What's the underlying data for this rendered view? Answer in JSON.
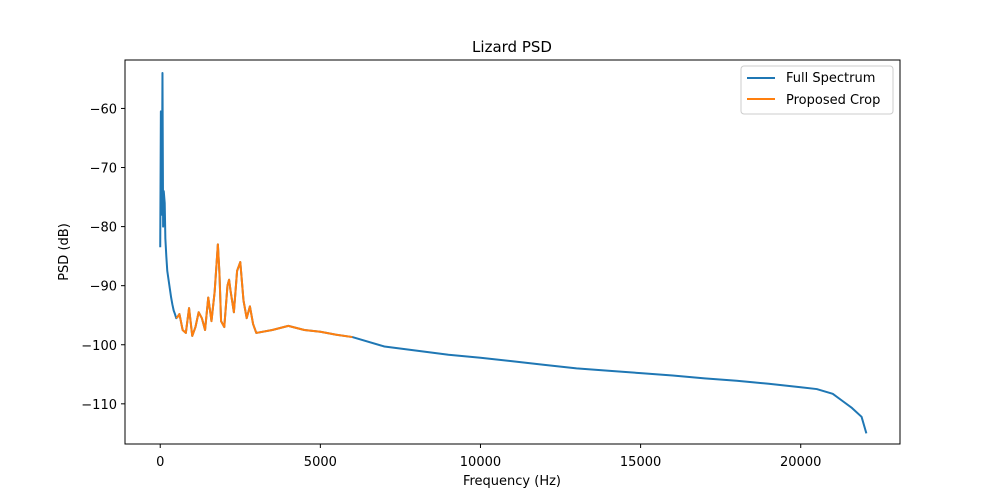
{
  "chart_data": {
    "type": "line",
    "title": "Lizard PSD",
    "xlabel": "Frequency (Hz)",
    "ylabel": "PSD (dB)",
    "xlim": [
      -1100,
      23100
    ],
    "ylim": [
      -116.8,
      -51.8
    ],
    "xticks": [
      0,
      5000,
      10000,
      15000,
      20000
    ],
    "xtick_labels": [
      "0",
      "5000",
      "10000",
      "15000",
      "20000"
    ],
    "yticks": [
      -60,
      -70,
      -80,
      -90,
      -100,
      -110
    ],
    "ytick_labels": [
      "−60",
      "−70",
      "−80",
      "−90",
      "−100",
      "−110"
    ],
    "legend_position": "top-right",
    "grid": false,
    "series": [
      {
        "name": "Full Spectrum",
        "color": "#1f77b4",
        "x": [
          0,
          20,
          30,
          50,
          70,
          90,
          110,
          140,
          160,
          190,
          220,
          260,
          300,
          340,
          380,
          420,
          460,
          500,
          540,
          600,
          700,
          800,
          900,
          1000,
          1100,
          1200,
          1300,
          1400,
          1500,
          1600,
          1700,
          1800,
          1850,
          1900,
          2000,
          2100,
          2150,
          2200,
          2300,
          2400,
          2500,
          2600,
          2700,
          2800,
          2900,
          3000,
          3500,
          4000,
          4500,
          5000,
          5500,
          6000,
          7000,
          8000,
          9000,
          10000,
          11000,
          12000,
          13000,
          14000,
          15000,
          16000,
          17000,
          18000,
          19000,
          20000,
          20500,
          21000,
          21300,
          21600,
          21900,
          22050
        ],
        "y": [
          -83.5,
          -60.5,
          -62,
          -78,
          -54,
          -80,
          -74,
          -76,
          -82,
          -85,
          -87.5,
          -89,
          -90.5,
          -92,
          -93.2,
          -94.2,
          -94.8,
          -95.5,
          -95.3,
          -94.8,
          -97.5,
          -98,
          -93.8,
          -98.5,
          -97,
          -94.5,
          -95.5,
          -97.5,
          -92,
          -96,
          -91,
          -83,
          -88,
          -96,
          -97,
          -90,
          -89,
          -91,
          -94.5,
          -87.5,
          -86,
          -92.5,
          -95.5,
          -93.5,
          -96.5,
          -98,
          -97.5,
          -96.8,
          -97.5,
          -97.8,
          -98.3,
          -98.7,
          -100.3,
          -101,
          -101.7,
          -102.2,
          -102.8,
          -103.4,
          -104,
          -104.4,
          -104.8,
          -105.2,
          -105.7,
          -106.1,
          -106.6,
          -107.2,
          -107.5,
          -108.3,
          -109.5,
          -110.7,
          -112.2,
          -115
        ]
      },
      {
        "name": "Proposed Crop",
        "color": "#ff7f0e",
        "x": [
          500,
          540,
          600,
          700,
          800,
          900,
          1000,
          1100,
          1200,
          1300,
          1400,
          1500,
          1600,
          1700,
          1800,
          1850,
          1900,
          2000,
          2100,
          2150,
          2200,
          2300,
          2400,
          2500,
          2600,
          2700,
          2800,
          2900,
          3000,
          3500,
          4000,
          4500,
          5000,
          5500,
          6000
        ],
        "y": [
          -95.5,
          -95.3,
          -94.8,
          -97.5,
          -98,
          -93.8,
          -98.5,
          -97,
          -94.5,
          -95.5,
          -97.5,
          -92,
          -96,
          -91,
          -83,
          -88,
          -96,
          -97,
          -90,
          -89,
          -91,
          -94.5,
          -87.5,
          -86,
          -92.5,
          -95.5,
          -93.5,
          -96.5,
          -98,
          -97.5,
          -96.8,
          -97.5,
          -97.8,
          -98.3,
          -98.7
        ]
      }
    ]
  }
}
